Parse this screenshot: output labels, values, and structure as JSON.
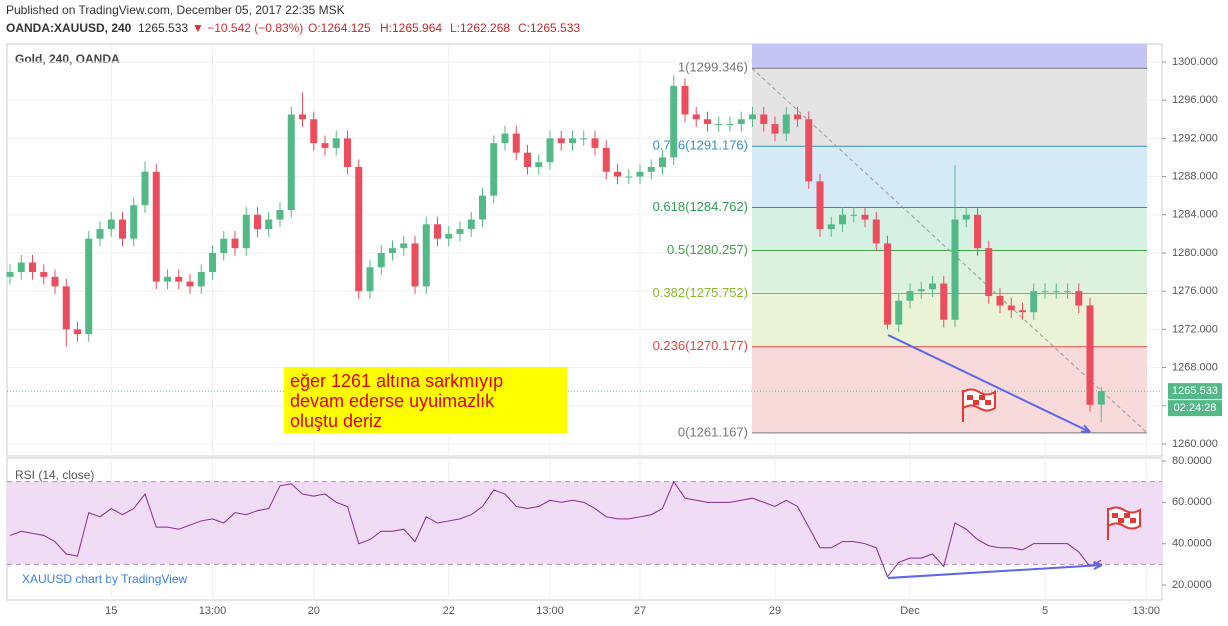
{
  "header": {
    "published": "Published on TradingView.com, December 05, 2017 22:35 MSK",
    "symbol": "OANDA:XAUUSD, 240",
    "last": "1265.533",
    "change": "▼ −10.542 (−0.83%)",
    "o": "O:1264.125",
    "h": "H:1265.964",
    "l": "L:1262.268",
    "c": "C:1265.533"
  },
  "watermark": "XAUUSD chart by TradingView",
  "chart_data": [
    {
      "type": "candlestick",
      "title": "Gold, 240, OANDA",
      "categories": [
        null,
        null,
        null,
        null,
        null,
        null,
        null,
        null,
        null,
        "15",
        null,
        null,
        null,
        null,
        null,
        null,
        null,
        null,
        "13:00",
        null,
        null,
        null,
        null,
        null,
        null,
        null,
        null,
        "20",
        null,
        null,
        null,
        null,
        null,
        null,
        null,
        null,
        null,
        null,
        null,
        "22",
        null,
        null,
        null,
        null,
        null,
        null,
        null,
        null,
        "13:00",
        null,
        null,
        null,
        null,
        null,
        null,
        null,
        "27",
        null,
        null,
        null,
        null,
        null,
        null,
        null,
        null,
        null,
        null,
        null,
        "29",
        null,
        null,
        null,
        null,
        null,
        null,
        null,
        null,
        null,
        null,
        null,
        "Dec",
        null,
        null,
        null,
        null,
        null,
        null,
        null,
        null,
        null,
        null,
        null,
        "5",
        null,
        null,
        null,
        null,
        null,
        null,
        null,
        null,
        "13:00"
      ],
      "open": [
        1277.5,
        1278,
        1279,
        1278,
        1277.5,
        1276.5,
        1272,
        1271.5,
        1281.5,
        1282.5,
        1283.5,
        1281.5,
        1285,
        1288.5,
        1277,
        1277.5,
        1277,
        1276.5,
        1278,
        1280,
        1281.5,
        1280.5,
        1284,
        1282.5,
        1283.5,
        1284.5,
        1294.5,
        1294,
        1291.5,
        1291,
        1292,
        1289,
        1276,
        1278.5,
        1280,
        1280.5,
        1281,
        1276.5,
        1283,
        1281.5,
        1282,
        1282.5,
        1283.5,
        1286,
        1291.5,
        1292.5,
        1290.5,
        1289,
        1289.5,
        1292,
        1291.5,
        1292,
        1292,
        1291,
        1288.5,
        1288,
        1288,
        1288.5,
        1289,
        1290,
        1297.5,
        1294.5,
        1294,
        1293.5,
        1293.5,
        1293.5,
        1294,
        1294.5,
        1293.5,
        1292.5,
        1294.5,
        1294,
        1287.5,
        1282.5,
        1283,
        1284,
        1284,
        1283.5,
        1281,
        1272.5,
        1275,
        1276,
        1276.2,
        1276.8,
        1273,
        1283.5,
        1284,
        1280.5,
        1275.5,
        1274.5,
        1274,
        1273.8,
        1276,
        1276,
        1276,
        1276,
        1274.5,
        1264.125,
        null,
        null,
        null,
        null
      ],
      "high": [
        1278.8,
        1279.8,
        1279.8,
        1278.8,
        1278.3,
        1277.3,
        1272.8,
        1282.3,
        1283.3,
        1284.3,
        1284.3,
        1285.8,
        1289.6,
        1289.3,
        1278.3,
        1278.3,
        1277.8,
        1278.8,
        1280.8,
        1282.3,
        1282.3,
        1284.8,
        1284.8,
        1284.3,
        1285.3,
        1295.3,
        1296.8,
        1294.8,
        1292.3,
        1292.8,
        1292.8,
        1289.8,
        1279.3,
        1280.8,
        1281.3,
        1281.8,
        1281.8,
        1283.8,
        1283.8,
        1282.8,
        1283.3,
        1284.3,
        1286.8,
        1292.3,
        1293.3,
        1293.3,
        1291.3,
        1290.3,
        1292.8,
        1292.8,
        1292.8,
        1292.8,
        1292.8,
        1291.8,
        1289.3,
        1288.8,
        1289.3,
        1289.8,
        1290.8,
        1298.6,
        1298.3,
        1295.3,
        1294.8,
        1294.3,
        1294.3,
        1294.8,
        1295.3,
        1295.3,
        1294.3,
        1295.3,
        1295.3,
        1294.8,
        1288.3,
        1283.8,
        1284.8,
        1284.8,
        1284.8,
        1284.3,
        1281.8,
        1275.8,
        1276.8,
        1277.0,
        1277.6,
        1277.6,
        1289.2,
        1284.8,
        1284.8,
        1281.3,
        1276.3,
        1275.3,
        1274.8,
        1276.8,
        1276.8,
        1276.8,
        1276.8,
        1276.8,
        1275.3,
        1265.964,
        null,
        null,
        null,
        null
      ],
      "low": [
        1276.7,
        1277.2,
        1277.2,
        1276.7,
        1275.7,
        1270.2,
        1270.7,
        1270.7,
        1280.7,
        1281.7,
        1280.7,
        1280.7,
        1284.2,
        1276.2,
        1276.2,
        1276.2,
        1275.7,
        1275.7,
        1277.2,
        1279.2,
        1279.7,
        1279.7,
        1281.7,
        1281.7,
        1282.7,
        1283.7,
        1293.2,
        1290.7,
        1290.2,
        1290.2,
        1288.2,
        1275.2,
        1275.2,
        1277.7,
        1279.2,
        1279.7,
        1275.7,
        1275.7,
        1280.7,
        1280.7,
        1281.2,
        1281.7,
        1282.7,
        1285.2,
        1290.7,
        1289.7,
        1288.2,
        1288.2,
        1288.7,
        1290.7,
        1290.7,
        1291.2,
        1290.2,
        1287.7,
        1287.2,
        1287.2,
        1287.2,
        1287.7,
        1288.2,
        1289.2,
        1293.7,
        1293.2,
        1292.7,
        1292.7,
        1292.7,
        1292.7,
        1293.2,
        1292.7,
        1291.7,
        1291.7,
        1293.2,
        1286.7,
        1281.7,
        1281.7,
        1282.2,
        1283.2,
        1282.7,
        1280.2,
        1272.0,
        1271.7,
        1274.2,
        1275.2,
        1275.4,
        1272.2,
        1272.2,
        1282.7,
        1279.7,
        1274.7,
        1273.7,
        1273.2,
        1273.0,
        1273.0,
        1275.2,
        1275.2,
        1275.2,
        1273.7,
        1263.4,
        1262.268,
        null,
        null,
        null,
        null
      ],
      "close": [
        1278,
        1279,
        1278,
        1277.5,
        1276.5,
        1272,
        1271.5,
        1281.5,
        1282.5,
        1283.5,
        1281.5,
        1285,
        1288.5,
        1277,
        1277.5,
        1277,
        1276.5,
        1278,
        1280,
        1281.5,
        1280.5,
        1284,
        1282.5,
        1283.5,
        1284.5,
        1294.5,
        1294,
        1291.5,
        1291,
        1292,
        1289,
        1276,
        1278.5,
        1280,
        1280.5,
        1281,
        1276.5,
        1283,
        1281.5,
        1282,
        1282.5,
        1283.5,
        1286,
        1291.5,
        1292.5,
        1290.5,
        1289,
        1289.5,
        1292,
        1291.5,
        1292,
        1292,
        1291,
        1288.5,
        1288,
        1288,
        1288.5,
        1289,
        1290,
        1297.5,
        1294.5,
        1294,
        1293.5,
        1293.5,
        1293.5,
        1294,
        1294.5,
        1293.5,
        1292.5,
        1294.5,
        1294,
        1287.5,
        1282.5,
        1283,
        1284,
        1284,
        1283.5,
        1281,
        1272.5,
        1275,
        1276,
        1276.2,
        1276.8,
        1273,
        1283.5,
        1284,
        1280.5,
        1275.5,
        1274.5,
        1274,
        1273.8,
        1276,
        1276,
        1276,
        1276,
        1274.5,
        1264.1,
        1265.533,
        null,
        null,
        null,
        null
      ],
      "up_color": "#53b987",
      "down_color": "#eb4d5c",
      "ylim": [
        1258.74,
        1301.88
      ],
      "yticks": [
        {
          "value": 1260,
          "label": "1260.000"
        },
        {
          "value": 1264,
          "label": "1264.000"
        },
        {
          "value": 1268,
          "label": "1268.000"
        },
        {
          "value": 1272,
          "label": "1272.000"
        },
        {
          "value": 1276,
          "label": "1276.000"
        },
        {
          "value": 1280,
          "label": "1280.000"
        },
        {
          "value": 1284,
          "label": "1284.000"
        },
        {
          "value": 1288,
          "label": "1288.000"
        },
        {
          "value": 1292,
          "label": "1292.000"
        },
        {
          "value": 1296,
          "label": "1296.000"
        },
        {
          "value": 1300,
          "label": "1300.000"
        }
      ],
      "grid": true,
      "current": {
        "value": 1265.533,
        "label": "1265.533",
        "countdown": "02:24:28",
        "color": "#53b987"
      },
      "fib_top_fill": "#c5c5f3",
      "fib_levels": [
        {
          "value": 1299.346,
          "label": "1(1299.346)",
          "color": "#787878",
          "fill": "#e4e4e4"
        },
        {
          "value": 1291.176,
          "label": "0.786(1291.176)",
          "color": "#3a8fc7",
          "fill": "#d5e9f7"
        },
        {
          "value": 1284.762,
          "label": "0.618(1284.762)",
          "color": "#2f9e5a",
          "fill": "#d4f1e4"
        },
        {
          "value": 1280.257,
          "label": "0.5(1280.257)",
          "color": "#43a047",
          "fill": "#dcf2de"
        },
        {
          "value": 1275.752,
          "label": "0.382(1275.752)",
          "color": "#8bb82e",
          "fill": "#eaf3d6"
        },
        {
          "value": 1270.177,
          "label": "0.236(1270.177)",
          "color": "#e04848",
          "fill": "#f8dada"
        },
        {
          "value": 1261.167,
          "label": "0(1261.167)",
          "color": "#787878"
        }
      ],
      "annotation": [
        "eğer 1261 altına sarkmıyıp",
        "devam ederse uyuimazlık",
        "oluştu deriz"
      ]
    },
    {
      "type": "line",
      "title": "RSI (14, close)",
      "values": [
        44,
        46,
        45,
        44,
        41,
        35,
        34,
        55,
        53,
        57,
        54,
        57,
        64,
        48,
        48,
        47,
        49,
        51,
        52,
        50,
        55,
        54,
        56,
        57,
        68,
        69,
        64,
        63,
        64,
        60,
        58,
        40,
        42,
        46,
        46,
        47,
        41,
        53,
        50,
        51,
        52,
        54,
        58,
        66,
        64,
        58,
        57,
        58,
        61,
        60,
        61,
        60,
        57,
        53,
        52,
        52,
        53,
        54,
        57,
        70,
        62,
        61,
        60,
        60,
        60,
        61,
        62,
        60,
        58,
        61,
        58,
        48,
        38,
        38,
        41,
        41,
        40,
        38,
        24,
        31,
        33,
        33,
        35,
        29,
        50,
        47,
        42,
        39,
        38,
        38,
        37,
        40,
        40,
        40,
        40,
        36,
        29,
        32
      ],
      "color": "#862a8c",
      "band_color": "#f1dcf6",
      "bands": [
        30,
        70
      ],
      "ylim": [
        12.75,
        81.45
      ],
      "yticks": [
        {
          "value": 20,
          "label": "20.0000"
        },
        {
          "value": 40,
          "label": "40.0000"
        },
        {
          "value": 60,
          "label": "60.0000"
        },
        {
          "value": 80,
          "label": "80.0000"
        }
      ]
    }
  ]
}
